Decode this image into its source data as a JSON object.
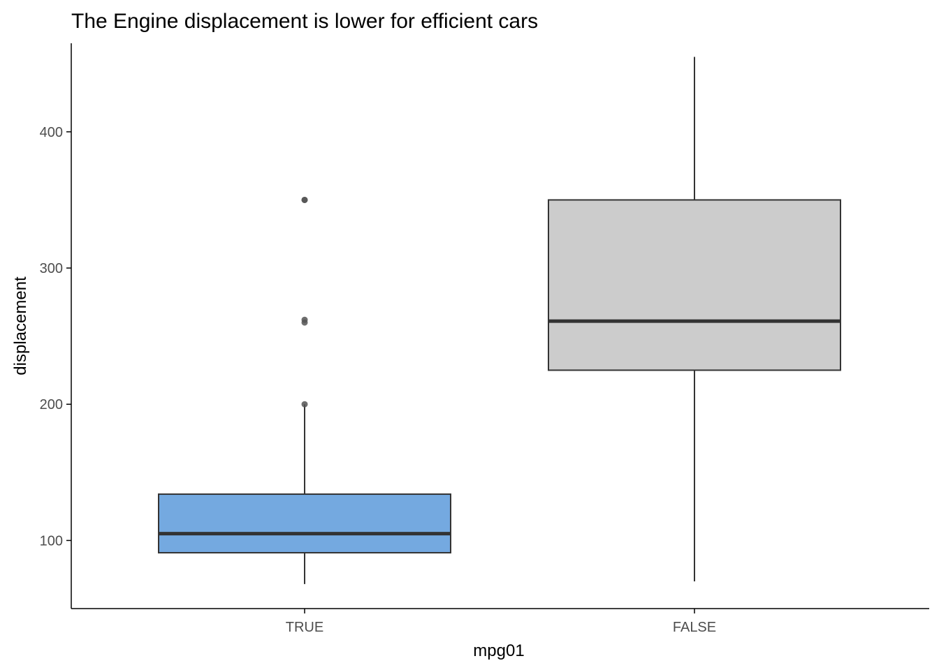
{
  "chart_data": {
    "type": "boxplot",
    "title": "The Engine displacement is lower for efficient cars",
    "xlabel": "mpg01",
    "ylabel": "displacement",
    "ylim": [
      50,
      465
    ],
    "y_ticks": [
      100,
      200,
      300,
      400
    ],
    "grid": false,
    "legend": "none",
    "categories": [
      "TRUE",
      "FALSE"
    ],
    "boxes": [
      {
        "category": "TRUE",
        "fill": "#74a9e0",
        "whisker_low": 68,
        "q1": 91,
        "median": 105,
        "q3": 134,
        "whisker_high": 200,
        "outliers": [
          200,
          260,
          262,
          350,
          350
        ]
      },
      {
        "category": "FALSE",
        "fill": "#cccccc",
        "whisker_low": 70,
        "q1": 225,
        "median": 261,
        "q3": 350,
        "whisker_high": 455,
        "outliers": []
      }
    ]
  },
  "colors": {
    "box_outline": "#333333",
    "whisker": "#333333",
    "outlier": "#555555",
    "axis_line": "#000000",
    "tick_text": "#4d4d4d"
  }
}
